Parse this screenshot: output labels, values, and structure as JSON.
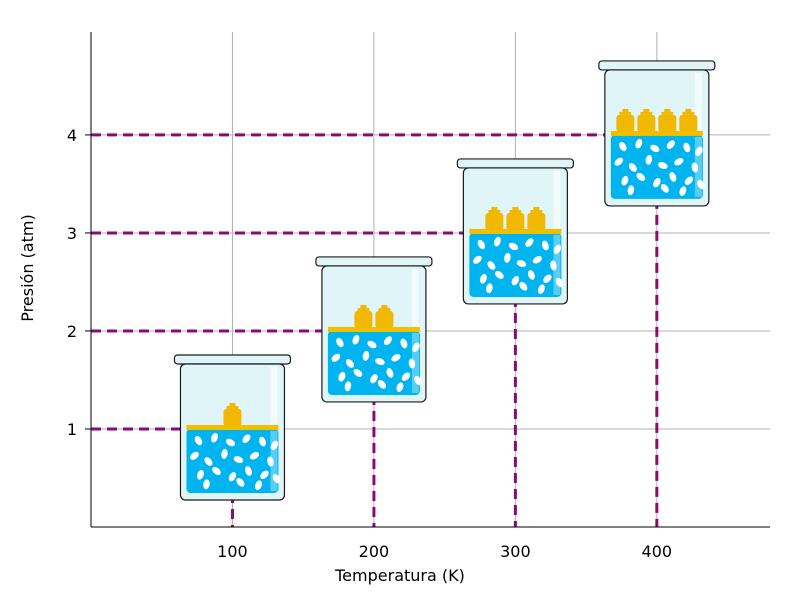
{
  "chart_data": {
    "type": "scatter",
    "title": "",
    "xlabel": "Temperatura (K)",
    "ylabel": "Presión (atm)",
    "x_ticks": [
      "100",
      "200",
      "300",
      "400"
    ],
    "y_ticks": [
      "1",
      "2",
      "3",
      "4"
    ],
    "xlim": [
      0,
      480
    ],
    "ylim": [
      0,
      5.05
    ],
    "grid": true,
    "points": [
      {
        "x": 100,
        "y": 1,
        "weights": 1
      },
      {
        "x": 200,
        "y": 2,
        "weights": 2
      },
      {
        "x": 300,
        "y": 3,
        "weights": 3
      },
      {
        "x": 400,
        "y": 4,
        "weights": 4
      }
    ]
  },
  "colors": {
    "guide_line": "#8b0a7a",
    "grid": "#b0b0b0",
    "axis": "#000000",
    "liquid": "#00b4f0",
    "container_glass": "#e0f5f8",
    "container_stroke": "#1a1a1a",
    "piston": "#f0c000",
    "weight": "#f0b800",
    "particle": "#ffffff"
  }
}
